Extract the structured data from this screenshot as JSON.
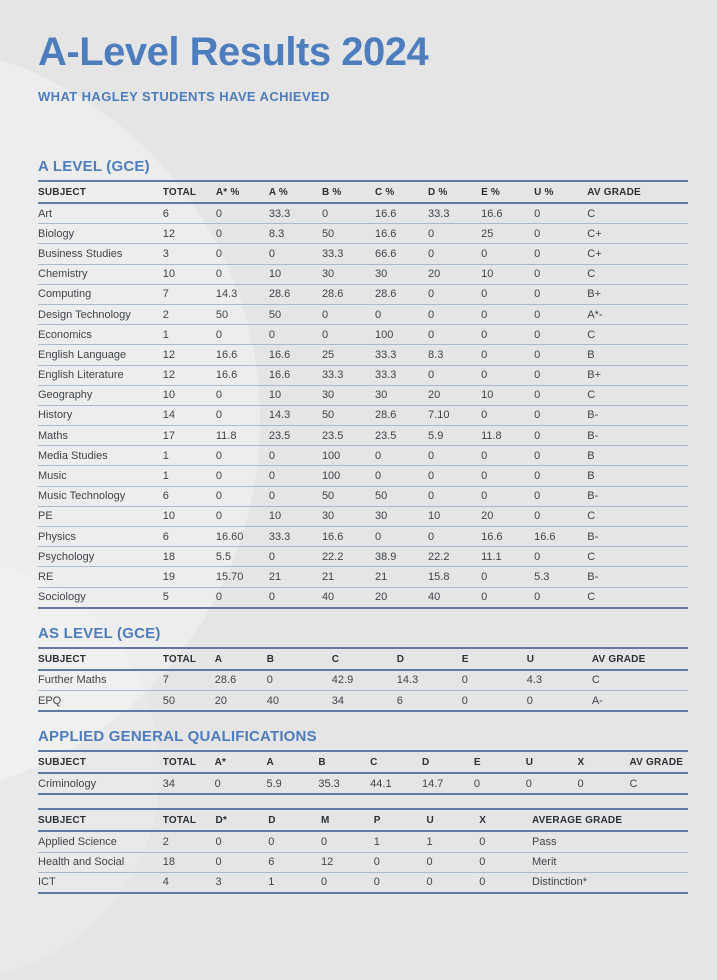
{
  "page": {
    "title": "A-Level Results 2024",
    "subtitle": "WHAT HAGLEY STUDENTS HAVE ACHIEVED"
  },
  "colors": {
    "accent_blue": "#4e7dbe",
    "background": "#e5e5e6",
    "table_border": "#5d7ca4",
    "row_line": "#aab9ce",
    "body_text": "#3f4449",
    "header_text": "#2b3035"
  },
  "sections": [
    {
      "heading": "A LEVEL (GCE)",
      "tables": [
        {
          "columns": [
            "SUBJECT",
            "TOTAL",
            "A* %",
            "A %",
            "B %",
            "C %",
            "D %",
            "E %",
            "U %",
            "AV GRADE"
          ],
          "rows": [
            [
              "Art",
              "6",
              "0",
              "33.3",
              "0",
              "16.6",
              "33.3",
              "16.6",
              "0",
              "C"
            ],
            [
              "Biology",
              "12",
              "0",
              "8.3",
              "50",
              "16.6",
              "0",
              "25",
              "0",
              "C+"
            ],
            [
              "Business Studies",
              "3",
              "0",
              "0",
              "33.3",
              "66.6",
              "0",
              "0",
              "0",
              "C+"
            ],
            [
              "Chemistry",
              "10",
              "0",
              "10",
              "30",
              "30",
              "20",
              "10",
              "0",
              "C"
            ],
            [
              "Computing",
              "7",
              "14.3",
              "28.6",
              "28.6",
              "28.6",
              "0",
              "0",
              "0",
              "B+"
            ],
            [
              "Design Technology",
              "2",
              "50",
              "50",
              "0",
              "0",
              "0",
              "0",
              "0",
              "A*-"
            ],
            [
              "Economics",
              "1",
              "0",
              "0",
              "0",
              "100",
              "0",
              "0",
              "0",
              "C"
            ],
            [
              "English Language",
              "12",
              "16.6",
              "16.6",
              "25",
              "33.3",
              "8.3",
              "0",
              "0",
              "B"
            ],
            [
              "English Literature",
              "12",
              "16.6",
              "16.6",
              "33.3",
              "33.3",
              "0",
              "0",
              "0",
              "B+"
            ],
            [
              "Geography",
              "10",
              "0",
              "10",
              "30",
              "30",
              "20",
              "10",
              "0",
              "C"
            ],
            [
              "History",
              "14",
              "0",
              "14.3",
              "50",
              "28.6",
              "7.10",
              "0",
              "0",
              "B-"
            ],
            [
              "Maths",
              "17",
              "11.8",
              "23.5",
              "23.5",
              "23.5",
              "5.9",
              "11.8",
              "0",
              "B-"
            ],
            [
              "Media Studies",
              "1",
              "0",
              "0",
              "100",
              "0",
              "0",
              "0",
              "0",
              "B"
            ],
            [
              "Music",
              "1",
              "0",
              "0",
              "100",
              "0",
              "0",
              "0",
              "0",
              "B"
            ],
            [
              "Music Technology",
              "6",
              "0",
              "0",
              "50",
              "50",
              "0",
              "0",
              "0",
              "B-"
            ],
            [
              "PE",
              "10",
              "0",
              "10",
              "30",
              "30",
              "10",
              "20",
              "0",
              "C"
            ],
            [
              "Physics",
              "6",
              "16.60",
              "33.3",
              "16.6",
              "0",
              "0",
              "16.6",
              "16.6",
              "B-"
            ],
            [
              "Psychology",
              "18",
              "5.5",
              "0",
              "22.2",
              "38.9",
              "22.2",
              "11.1",
              "0",
              "C"
            ],
            [
              "RE",
              "19",
              "15.70",
              "21",
              "21",
              "21",
              "15.8",
              "0",
              "5.3",
              "B-"
            ],
            [
              "Sociology",
              "5",
              "0",
              "0",
              "40",
              "20",
              "40",
              "0",
              "0",
              "C"
            ]
          ]
        }
      ]
    },
    {
      "heading": "AS LEVEL (GCE)",
      "tables": [
        {
          "columns": [
            "SUBJECT",
            "TOTAL",
            "A",
            "B",
            "C",
            "D",
            "E",
            "U",
            "AV GRADE"
          ],
          "rows": [
            [
              "Further Maths",
              "7",
              "28.6",
              "0",
              "42.9",
              "14.3",
              "0",
              "4.3",
              "C"
            ],
            [
              "EPQ",
              "50",
              "20",
              "40",
              "34",
              "6",
              "0",
              "0",
              "A-"
            ]
          ]
        }
      ]
    },
    {
      "heading": "APPLIED GENERAL QUALIFICATIONS",
      "tables": [
        {
          "columns": [
            "SUBJECT",
            "TOTAL",
            "A*",
            "A",
            "B",
            "C",
            "D",
            "E",
            "U",
            "X",
            "AV GRADE"
          ],
          "rows": [
            [
              "Criminology",
              "34",
              "0",
              "5.9",
              "35.3",
              "44.1",
              "14.7",
              "0",
              "0",
              "0",
              "C"
            ]
          ]
        },
        {
          "columns": [
            "SUBJECT",
            "TOTAL",
            "D*",
            "D",
            "M",
            "P",
            "U",
            "X",
            "AVERAGE GRADE"
          ],
          "rows": [
            [
              "Applied Science",
              "2",
              "0",
              "0",
              "0",
              "1",
              "1",
              "0",
              "Pass"
            ],
            [
              "Health and Social",
              "18",
              "0",
              "6",
              "12",
              "0",
              "0",
              "0",
              "Merit"
            ],
            [
              "ICT",
              "4",
              "3",
              "1",
              "0",
              "0",
              "0",
              "0",
              "Distinction*"
            ]
          ]
        }
      ]
    }
  ]
}
